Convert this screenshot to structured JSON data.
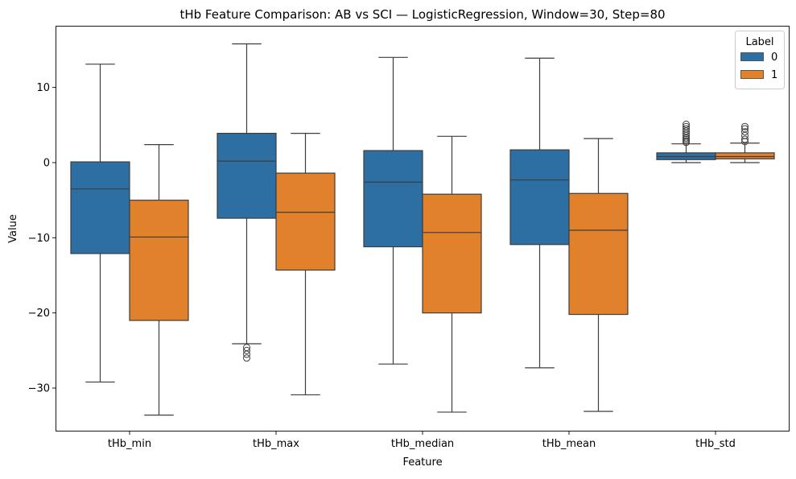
{
  "chart_data": {
    "type": "box",
    "title": "tHb Feature Comparison: AB vs SCI — LogisticRegression, Window=30, Step=80",
    "xlabel": "Feature",
    "ylabel": "Value",
    "ylim": [
      -36,
      18
    ],
    "yticks": [
      10,
      0,
      -10,
      -20,
      -30
    ],
    "ytick_labels": [
      "10",
      "0",
      "−10",
      "−20",
      "−30"
    ],
    "categories": [
      "tHb_min",
      "tHb_max",
      "tHb_median",
      "tHb_mean",
      "tHb_std"
    ],
    "legend": {
      "title": "Label",
      "position": "top-right"
    },
    "series": [
      {
        "name": "0",
        "color": "#2e6fa3",
        "boxes": [
          {
            "whislo": -29.2,
            "q1": -12.1,
            "med": -3.5,
            "q3": 0.1,
            "whishi": 13.1,
            "fliers": []
          },
          {
            "whislo": -24.1,
            "q1": -7.4,
            "med": 0.2,
            "q3": 3.9,
            "whishi": 15.8,
            "fliers": [
              -24.6,
              -25.0,
              -25.5,
              -26.0
            ]
          },
          {
            "whislo": -26.8,
            "q1": -11.2,
            "med": -2.6,
            "q3": 1.6,
            "whishi": 14.0,
            "fliers": []
          },
          {
            "whislo": -27.3,
            "q1": -10.9,
            "med": -2.3,
            "q3": 1.7,
            "whishi": 13.9,
            "fliers": []
          },
          {
            "whislo": 0.0,
            "q1": 0.4,
            "med": 0.8,
            "q3": 1.3,
            "whishi": 2.5,
            "fliers": [
              2.7,
              2.9,
              3.1,
              3.3,
              3.6,
              3.9,
              4.2,
              4.5,
              4.8,
              5.1
            ]
          }
        ]
      },
      {
        "name": "1",
        "color": "#e1812c",
        "boxes": [
          {
            "whislo": -33.6,
            "q1": -21.0,
            "med": -9.9,
            "q3": -5.0,
            "whishi": 2.4,
            "fliers": []
          },
          {
            "whislo": -30.9,
            "q1": -14.3,
            "med": -6.6,
            "q3": -1.4,
            "whishi": 3.9,
            "fliers": []
          },
          {
            "whislo": -33.2,
            "q1": -20.0,
            "med": -9.3,
            "q3": -4.2,
            "whishi": 3.5,
            "fliers": []
          },
          {
            "whislo": -33.1,
            "q1": -20.2,
            "med": -9.0,
            "q3": -4.1,
            "whishi": 3.2,
            "fliers": []
          },
          {
            "whislo": 0.0,
            "q1": 0.5,
            "med": 0.8,
            "q3": 1.3,
            "whishi": 2.6,
            "fliers": [
              2.8,
              3.1,
              3.6,
              4.1,
              4.5,
              4.8
            ]
          }
        ]
      }
    ]
  }
}
